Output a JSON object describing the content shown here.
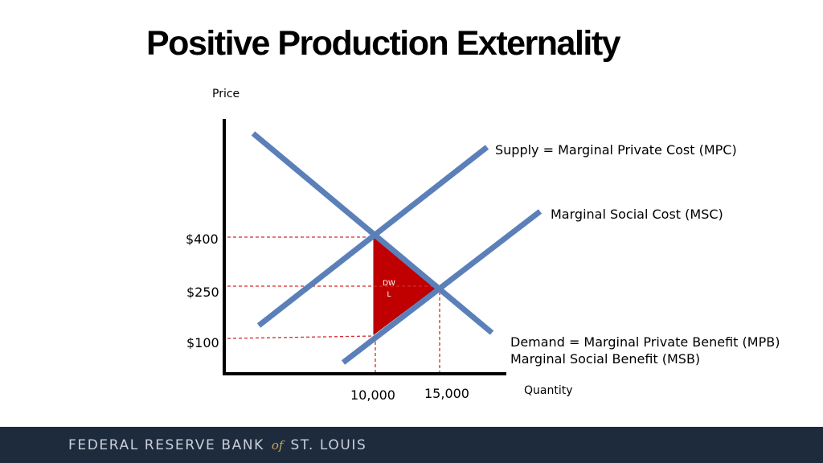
{
  "title": "Positive Production Externality",
  "axes": {
    "y_label": "Price",
    "x_label": "Quantity"
  },
  "price_labels": {
    "p400": "$400",
    "p250": "$250",
    "p100": "$100"
  },
  "quantity_labels": {
    "q10000": "10,000",
    "q15000": "15,000"
  },
  "curves": {
    "supply": "Supply = Marginal Private Cost (MPC)",
    "msc": "Marginal Social Cost (MSC)",
    "demand_line1": "Demand = Marginal Private Benefit (MPB)",
    "demand_line2": "Marginal Social Benefit (MSB)"
  },
  "dwl_label": {
    "line1": "DW",
    "line2": "L"
  },
  "colors": {
    "curve": "#5b80b9",
    "dwl_fill": "#c00000",
    "guide": "#d22b2b",
    "footer_bg": "#1e2b3d"
  },
  "footer": {
    "pre": "FEDERAL RESERVE BANK",
    "of": "of",
    "post": "ST. LOUIS"
  }
}
